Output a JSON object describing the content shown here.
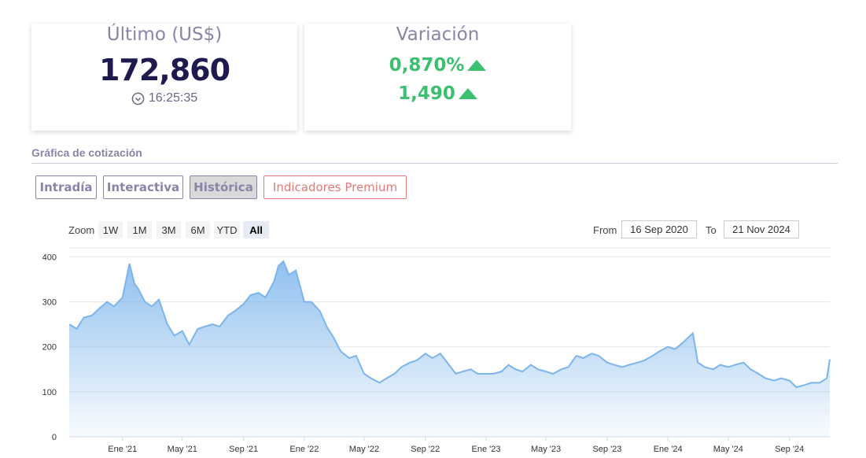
{
  "last_card": {
    "label": "Último (US$)",
    "price": "172,860",
    "time": "16:25:35"
  },
  "variation_card": {
    "label": "Variación",
    "percent": "0,870%",
    "absolute": "1,490"
  },
  "section": {
    "title": "Gráfica de cotización"
  },
  "tabs": [
    {
      "label": "Intradía"
    },
    {
      "label": "Interactiva"
    },
    {
      "label": "Histórica",
      "active": true
    },
    {
      "label": "Indicadores Premium"
    }
  ],
  "zoom": {
    "label": "Zoom",
    "buttons": [
      "1W",
      "1M",
      "3M",
      "6M",
      "YTD",
      "All"
    ],
    "active": "All"
  },
  "range": {
    "from_label": "From",
    "from_value": "16 Sep 2020",
    "to_label": "To",
    "to_value": "21 Nov 2024"
  },
  "colors": {
    "accent_purple": "#8a84a8",
    "up_green": "#3cbf6e",
    "series_line": "#7cb5ec",
    "premium_red": "#e07a78"
  },
  "chart_data": {
    "type": "area",
    "x_ticks": [
      "Ene '21",
      "May '21",
      "Sep '21",
      "Ene '22",
      "May '22",
      "Sep '22",
      "Ene '23",
      "May '23",
      "Sep '23",
      "Ene '24",
      "May '24",
      "Sep '24"
    ],
    "x_tick_dates": [
      "2021-01-01",
      "2021-05-01",
      "2021-09-01",
      "2022-01-01",
      "2022-05-01",
      "2022-09-01",
      "2023-01-01",
      "2023-05-01",
      "2023-09-01",
      "2024-01-01",
      "2024-05-01",
      "2024-09-01"
    ],
    "y_ticks": [
      0,
      100,
      200,
      300,
      400
    ],
    "ylim": [
      0,
      420
    ],
    "xlim": [
      "2020-09-16",
      "2024-11-21"
    ],
    "grid": true,
    "series": [
      {
        "x": [
          "2020-09-16",
          "2020-10-01",
          "2020-10-15",
          "2020-11-01",
          "2020-11-15",
          "2020-12-01",
          "2020-12-15",
          "2021-01-01",
          "2021-01-15",
          "2021-01-25",
          "2021-02-01",
          "2021-02-15",
          "2021-03-01",
          "2021-03-15",
          "2021-04-01",
          "2021-04-15",
          "2021-05-01",
          "2021-05-15",
          "2021-06-01",
          "2021-06-15",
          "2021-07-01",
          "2021-07-15",
          "2021-08-01",
          "2021-08-15",
          "2021-09-01",
          "2021-09-15",
          "2021-10-01",
          "2021-10-15",
          "2021-11-01",
          "2021-11-10",
          "2021-11-20",
          "2021-12-01",
          "2021-12-15",
          "2022-01-01",
          "2022-01-15",
          "2022-02-01",
          "2022-02-15",
          "2022-03-01",
          "2022-03-15",
          "2022-04-01",
          "2022-04-15",
          "2022-05-01",
          "2022-05-15",
          "2022-06-01",
          "2022-06-15",
          "2022-07-01",
          "2022-07-15",
          "2022-08-01",
          "2022-08-15",
          "2022-09-01",
          "2022-09-15",
          "2022-10-01",
          "2022-10-15",
          "2022-11-01",
          "2022-11-15",
          "2022-12-01",
          "2022-12-15",
          "2023-01-01",
          "2023-01-15",
          "2023-02-01",
          "2023-02-15",
          "2023-03-01",
          "2023-03-15",
          "2023-04-01",
          "2023-04-15",
          "2023-05-01",
          "2023-05-15",
          "2023-06-01",
          "2023-06-15",
          "2023-07-01",
          "2023-07-15",
          "2023-08-01",
          "2023-08-15",
          "2023-09-01",
          "2023-09-15",
          "2023-10-01",
          "2023-10-15",
          "2023-11-01",
          "2023-11-15",
          "2023-12-01",
          "2023-12-15",
          "2024-01-01",
          "2024-01-15",
          "2024-02-01",
          "2024-02-10",
          "2024-02-20",
          "2024-03-01",
          "2024-03-15",
          "2024-04-01",
          "2024-04-15",
          "2024-05-01",
          "2024-05-15",
          "2024-06-01",
          "2024-06-15",
          "2024-07-01",
          "2024-07-15",
          "2024-08-01",
          "2024-08-15",
          "2024-09-01",
          "2024-09-15",
          "2024-10-01",
          "2024-10-15",
          "2024-11-01",
          "2024-11-15",
          "2024-11-21"
        ],
        "y": [
          250,
          240,
          265,
          270,
          285,
          300,
          290,
          310,
          385,
          340,
          330,
          300,
          290,
          305,
          250,
          225,
          235,
          205,
          240,
          245,
          250,
          245,
          270,
          280,
          295,
          315,
          320,
          310,
          345,
          380,
          390,
          360,
          370,
          300,
          300,
          280,
          245,
          220,
          190,
          175,
          180,
          140,
          130,
          120,
          130,
          140,
          155,
          165,
          170,
          185,
          175,
          185,
          165,
          140,
          145,
          150,
          140,
          140,
          140,
          145,
          160,
          150,
          145,
          160,
          150,
          145,
          140,
          150,
          155,
          180,
          175,
          185,
          180,
          165,
          160,
          155,
          160,
          165,
          170,
          180,
          190,
          200,
          195,
          210,
          220,
          230,
          165,
          155,
          150,
          160,
          155,
          160,
          165,
          150,
          140,
          130,
          125,
          130,
          125,
          110,
          115,
          120,
          120,
          130,
          172
        ]
      }
    ]
  }
}
